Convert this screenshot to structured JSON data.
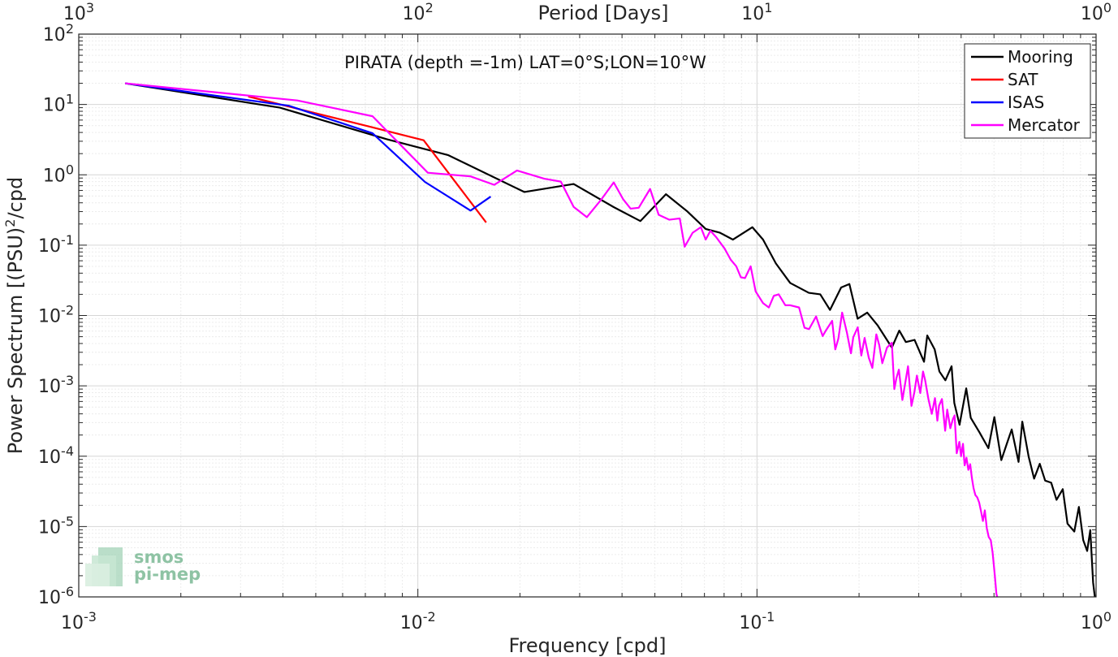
{
  "chart_data": {
    "type": "line",
    "title": "PIRATA (depth =-1m) LAT=0°S;LON=10°W",
    "xlabel": "Frequency [cpd]",
    "ylabel": "Power Spectrum [(PSU)",
    "ylabel_sup": "2",
    "ylabel_suffix": "/cpd",
    "x_top_label": "Period [Days]",
    "x_scale": "log",
    "y_scale": "log",
    "xlim": [
      0.001,
      1
    ],
    "ylim": [
      1e-06,
      100
    ],
    "grid": true,
    "legend_position": "top-right",
    "x_ticks": [
      {
        "base": "10",
        "exp": "-3",
        "value": 0.001
      },
      {
        "base": "10",
        "exp": "-2",
        "value": 0.01
      },
      {
        "base": "10",
        "exp": "-1",
        "value": 0.1
      },
      {
        "base": "10",
        "exp": "0",
        "value": 1
      }
    ],
    "x_top_ticks": [
      {
        "base": "10",
        "exp": "3",
        "value": 0.001
      },
      {
        "base": "10",
        "exp": "2",
        "value": 0.01
      },
      {
        "base": "10",
        "exp": "1",
        "value": 0.1
      },
      {
        "base": "10",
        "exp": "0",
        "value": 1
      }
    ],
    "y_ticks": [
      {
        "base": "10",
        "exp": "2",
        "value": 100
      },
      {
        "base": "10",
        "exp": "1",
        "value": 10
      },
      {
        "base": "10",
        "exp": "0",
        "value": 1
      },
      {
        "base": "10",
        "exp": "-1",
        "value": 0.1
      },
      {
        "base": "10",
        "exp": "-2",
        "value": 0.01
      },
      {
        "base": "10",
        "exp": "-3",
        "value": 0.001
      },
      {
        "base": "10",
        "exp": "-4",
        "value": 0.0001
      },
      {
        "base": "10",
        "exp": "-5",
        "value": 1e-05
      },
      {
        "base": "10",
        "exp": "-6",
        "value": 1e-06
      }
    ],
    "series": [
      {
        "name": "Mooring",
        "color": "#000000",
        "points": [
          [
            0.00137,
            20
          ],
          [
            0.00392,
            9
          ],
          [
            0.0081,
            3.2
          ],
          [
            0.0123,
            1.9
          ],
          [
            0.0206,
            0.57
          ],
          [
            0.0288,
            0.74
          ],
          [
            0.0377,
            0.35
          ],
          [
            0.0453,
            0.22
          ],
          [
            0.0539,
            0.53
          ],
          [
            0.0624,
            0.3
          ],
          [
            0.0706,
            0.17
          ],
          [
            0.0778,
            0.15
          ],
          [
            0.0849,
            0.12
          ],
          [
            0.0969,
            0.18
          ],
          [
            0.1042,
            0.12
          ],
          [
            0.1137,
            0.055
          ],
          [
            0.1253,
            0.029
          ],
          [
            0.1422,
            0.021
          ],
          [
            0.1537,
            0.02
          ],
          [
            0.1642,
            0.012
          ],
          [
            0.1771,
            0.025
          ],
          [
            0.1873,
            0.028
          ],
          [
            0.1981,
            0.009
          ],
          [
            0.2114,
            0.011
          ],
          [
            0.2271,
            0.0072
          ],
          [
            0.2499,
            0.0035
          ],
          [
            0.2628,
            0.0061
          ],
          [
            0.2748,
            0.0042
          ],
          [
            0.2916,
            0.0045
          ],
          [
            0.3109,
            0.0022
          ],
          [
            0.3178,
            0.0052
          ],
          [
            0.3342,
            0.0033
          ],
          [
            0.3451,
            0.0016
          ],
          [
            0.3594,
            0.0012
          ],
          [
            0.3749,
            0.0019
          ],
          [
            0.3819,
            0.00057
          ],
          [
            0.3957,
            0.00028
          ],
          [
            0.4141,
            0.00092
          ],
          [
            0.4271,
            0.00035
          ],
          [
            0.4526,
            0.00022
          ],
          [
            0.4813,
            0.00013
          ],
          [
            0.5012,
            0.00036
          ],
          [
            0.5255,
            8.8e-05
          ],
          [
            0.5454,
            0.00015
          ],
          [
            0.5639,
            0.00024
          ],
          [
            0.5907,
            8.3e-05
          ],
          [
            0.6059,
            0.00031
          ],
          [
            0.6328,
            9.8e-05
          ],
          [
            0.6565,
            4.8e-05
          ],
          [
            0.6822,
            7.8e-05
          ],
          [
            0.7077,
            4.5e-05
          ],
          [
            0.7373,
            4.2e-05
          ],
          [
            0.7645,
            2.4e-05
          ],
          [
            0.7977,
            3.4e-05
          ],
          [
            0.8236,
            1.1e-05
          ],
          [
            0.8625,
            8.5e-06
          ],
          [
            0.8898,
            1.9e-05
          ],
          [
            0.9165,
            6.4e-06
          ],
          [
            0.9412,
            4.5e-06
          ],
          [
            0.9614,
            8.9e-06
          ],
          [
            0.9801,
            1.6e-06
          ],
          [
            0.9916,
            1e-06
          ]
        ]
      },
      {
        "name": "SAT",
        "color": "#ff0000",
        "points": [
          [
            0.00316,
            13
          ],
          [
            0.00713,
            4.9
          ],
          [
            0.0104,
            3.1
          ],
          [
            0.0159,
            0.21
          ]
        ]
      },
      {
        "name": "ISAS",
        "color": "#0000ff",
        "points": [
          [
            0.00137,
            20
          ],
          [
            0.00416,
            9.6
          ],
          [
            0.00735,
            3.9
          ],
          [
            0.0105,
            0.79
          ],
          [
            0.0143,
            0.31
          ],
          [
            0.0164,
            0.49
          ]
        ]
      },
      {
        "name": "Mercator",
        "color": "#ff00ff",
        "points": [
          [
            0.00137,
            20
          ],
          [
            0.00441,
            11.4
          ],
          [
            0.00735,
            6.8
          ],
          [
            0.0107,
            1.07
          ],
          [
            0.0143,
            0.95
          ],
          [
            0.0168,
            0.72
          ],
          [
            0.0196,
            1.15
          ],
          [
            0.0236,
            0.88
          ],
          [
            0.0264,
            0.8
          ],
          [
            0.0288,
            0.35
          ],
          [
            0.0315,
            0.25
          ],
          [
            0.0348,
            0.45
          ],
          [
            0.0378,
            0.78
          ],
          [
            0.0403,
            0.45
          ],
          [
            0.0424,
            0.33
          ],
          [
            0.0448,
            0.34
          ],
          [
            0.0484,
            0.63
          ],
          [
            0.0513,
            0.27
          ],
          [
            0.0551,
            0.23
          ],
          [
            0.0592,
            0.24
          ],
          [
            0.0612,
            0.095
          ],
          [
            0.0646,
            0.15
          ],
          [
            0.0683,
            0.18
          ],
          [
            0.0706,
            0.12
          ],
          [
            0.0729,
            0.16
          ],
          [
            0.0758,
            0.13
          ],
          [
            0.0802,
            0.09
          ],
          [
            0.0837,
            0.062
          ],
          [
            0.0869,
            0.05
          ],
          [
            0.0896,
            0.035
          ],
          [
            0.0922,
            0.034
          ],
          [
            0.0958,
            0.05
          ],
          [
            0.0991,
            0.022
          ],
          [
            0.1042,
            0.015
          ],
          [
            0.1084,
            0.013
          ],
          [
            0.1121,
            0.019
          ],
          [
            0.1159,
            0.02
          ],
          [
            0.1212,
            0.014
          ],
          [
            0.1251,
            0.014
          ],
          [
            0.1331,
            0.013
          ],
          [
            0.1381,
            0.0067
          ],
          [
            0.1424,
            0.0064
          ],
          [
            0.1494,
            0.0097
          ],
          [
            0.1562,
            0.0051
          ],
          [
            0.1596,
            0.0061
          ],
          [
            0.1666,
            0.0084
          ],
          [
            0.1702,
            0.0033
          ],
          [
            0.1738,
            0.0047
          ],
          [
            0.1783,
            0.011
          ],
          [
            0.1842,
            0.0057
          ],
          [
            0.1893,
            0.0029
          ],
          [
            0.1923,
            0.0049
          ],
          [
            0.1982,
            0.0068
          ],
          [
            0.2031,
            0.0027
          ],
          [
            0.2077,
            0.0048
          ],
          [
            0.2137,
            0.0025
          ],
          [
            0.2189,
            0.0018
          ],
          [
            0.2249,
            0.0054
          ],
          [
            0.2294,
            0.0038
          ],
          [
            0.2342,
            0.0021
          ],
          [
            0.2418,
            0.0035
          ],
          [
            0.2499,
            0.0041
          ],
          [
            0.2541,
            0.0009
          ],
          [
            0.2579,
            0.0013
          ],
          [
            0.2621,
            0.0017
          ],
          [
            0.2684,
            0.00063
          ],
          [
            0.2745,
            0.0012
          ],
          [
            0.2789,
            0.0019
          ],
          [
            0.2855,
            0.00052
          ],
          [
            0.2913,
            0.00082
          ],
          [
            0.2962,
            0.0014
          ],
          [
            0.3031,
            0.00079
          ],
          [
            0.3088,
            0.0016
          ],
          [
            0.3133,
            0.0012
          ],
          [
            0.3203,
            0.00065
          ],
          [
            0.3277,
            0.0004
          ],
          [
            0.3349,
            0.00067
          ],
          [
            0.3404,
            0.00032
          ],
          [
            0.3442,
            0.00052
          ],
          [
            0.3511,
            0.00065
          ],
          [
            0.3589,
            0.00023
          ],
          [
            0.3639,
            0.00046
          ],
          [
            0.3717,
            0.00025
          ],
          [
            0.3785,
            0.00034
          ],
          [
            0.3826,
            0.00038
          ],
          [
            0.3882,
            0.00011
          ],
          [
            0.3952,
            0.00016
          ],
          [
            0.3998,
            0.0001
          ],
          [
            0.4051,
            0.00015
          ],
          [
            0.4096,
            7.4e-05
          ],
          [
            0.4148,
            9.5e-05
          ],
          [
            0.4201,
            6.4e-05
          ],
          [
            0.4254,
            7.7e-05
          ],
          [
            0.4303,
            4.9e-05
          ],
          [
            0.4353,
            3.5e-05
          ],
          [
            0.4406,
            2.8e-05
          ],
          [
            0.4463,
            2.6e-05
          ],
          [
            0.4521,
            2.2e-05
          ],
          [
            0.4584,
            1.6e-05
          ],
          [
            0.4637,
            1.2e-05
          ],
          [
            0.4698,
            1.7e-05
          ],
          [
            0.4761,
            9.5e-06
          ],
          [
            0.4824,
            7.1e-06
          ],
          [
            0.4892,
            6.4e-06
          ],
          [
            0.4955,
            4.2e-06
          ],
          [
            0.5024,
            2.1e-06
          ],
          [
            0.5083,
            1.1e-06
          ],
          [
            0.5112,
            1e-06
          ]
        ]
      }
    ]
  },
  "logo": {
    "line1": "smos",
    "line2": "pi-mep"
  }
}
